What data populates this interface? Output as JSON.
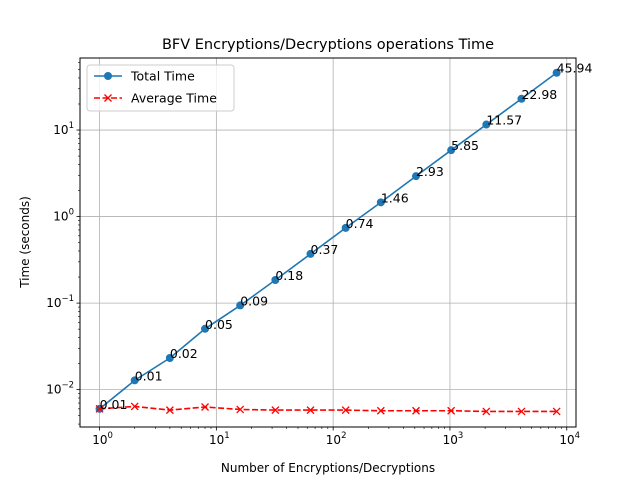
{
  "chart_data": {
    "type": "line",
    "title": "BFV Encryptions/Decryptions operations Time",
    "xlabel": "Number of Encryptions/Decryptions",
    "ylabel": "Time (seconds)",
    "xscale": "log",
    "yscale": "log",
    "xlim": [
      0.68,
      12000
    ],
    "ylim": [
      0.0037,
      68
    ],
    "grid": true,
    "legend_position": "top-left",
    "x": [
      1,
      2,
      4,
      8,
      16,
      32,
      64,
      128,
      256,
      512,
      1024,
      2048,
      4096,
      8192
    ],
    "series": [
      {
        "name": "Total Time",
        "color": "#1f77b4",
        "linestyle": "solid",
        "marker": "circle",
        "values": [
          0.006,
          0.0128,
          0.0232,
          0.0505,
          0.094,
          0.185,
          0.37,
          0.74,
          1.46,
          2.93,
          5.85,
          11.57,
          22.98,
          45.94
        ]
      },
      {
        "name": "Average Time",
        "color": "#ff0000",
        "linestyle": "dashed",
        "marker": "x",
        "values": [
          0.006,
          0.0064,
          0.0058,
          0.0063,
          0.0059,
          0.0058,
          0.0058,
          0.0058,
          0.0057,
          0.0057,
          0.0057,
          0.0056,
          0.0056,
          0.0056
        ]
      }
    ],
    "data_labels": [
      "0.01",
      "0.01",
      "0.02",
      "0.05",
      "0.09",
      "0.18",
      "0.37",
      "0.74",
      "1.46",
      "2.93",
      "5.85",
      "11.57",
      "22.98",
      "45.94"
    ],
    "x_ticks": [
      {
        "value": 1,
        "base": "10",
        "exp": "0"
      },
      {
        "value": 10,
        "base": "10",
        "exp": "1"
      },
      {
        "value": 100,
        "base": "10",
        "exp": "2"
      },
      {
        "value": 1000,
        "base": "10",
        "exp": "3"
      },
      {
        "value": 10000,
        "base": "10",
        "exp": "4"
      }
    ],
    "y_ticks": [
      {
        "value": 0.01,
        "base": "10",
        "exp": "−2"
      },
      {
        "value": 0.1,
        "base": "10",
        "exp": "−1"
      },
      {
        "value": 1,
        "base": "10",
        "exp": "0"
      },
      {
        "value": 10,
        "base": "10",
        "exp": "1"
      }
    ]
  }
}
